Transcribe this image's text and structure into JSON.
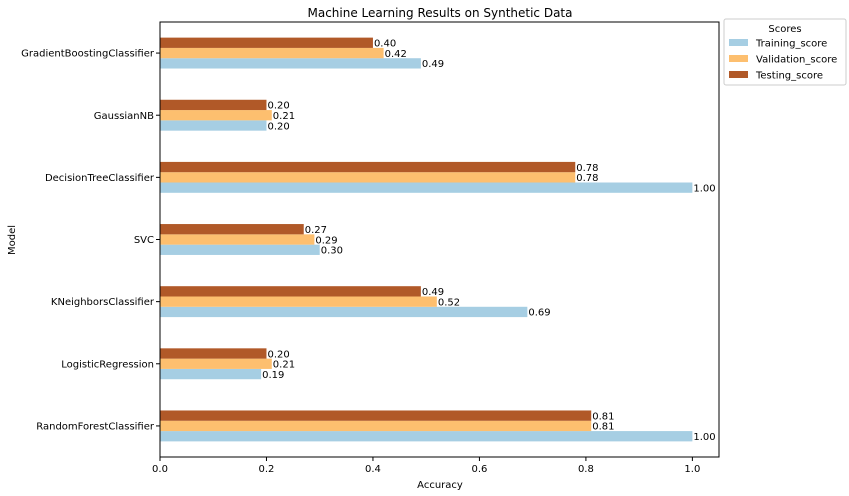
{
  "chart_data": {
    "type": "bar",
    "orientation": "horizontal",
    "title": "Machine Learning Results on Synthetic Data",
    "xlabel": "Accuracy",
    "ylabel": "Model",
    "xlim": [
      0,
      1.05
    ],
    "xticks": [
      "0.0",
      "0.2",
      "0.4",
      "0.6",
      "0.8",
      "1.0"
    ],
    "xtick_values": [
      0,
      0.2,
      0.4,
      0.6,
      0.8,
      1.0
    ],
    "grid": false,
    "legend": {
      "title": "Scores",
      "placement": "outside-top-right"
    },
    "categories": [
      "RandomForestClassifier",
      "LogisticRegression",
      "KNeighborsClassifier",
      "SVC",
      "DecisionTreeClassifier",
      "GaussianNB",
      "GradientBoostingClassifier"
    ],
    "series": [
      {
        "name": "Training_score",
        "color": "#a6cee3",
        "values": [
          1.0,
          0.19,
          0.69,
          0.3,
          1.0,
          0.2,
          0.49
        ],
        "labels": [
          "1.00",
          "0.19",
          "0.69",
          "0.30",
          "1.00",
          "0.20",
          "0.49"
        ]
      },
      {
        "name": "Validation_score",
        "color": "#fdbf6f",
        "values": [
          0.81,
          0.21,
          0.52,
          0.29,
          0.78,
          0.21,
          0.42
        ],
        "labels": [
          "0.81",
          "0.21",
          "0.52",
          "0.29",
          "0.78",
          "0.21",
          "0.42"
        ]
      },
      {
        "name": "Testing_score",
        "color": "#b15928",
        "values": [
          0.81,
          0.2,
          0.49,
          0.27,
          0.78,
          0.2,
          0.4
        ],
        "labels": [
          "0.81",
          "0.20",
          "0.49",
          "0.27",
          "0.78",
          "0.20",
          "0.40"
        ]
      }
    ]
  }
}
